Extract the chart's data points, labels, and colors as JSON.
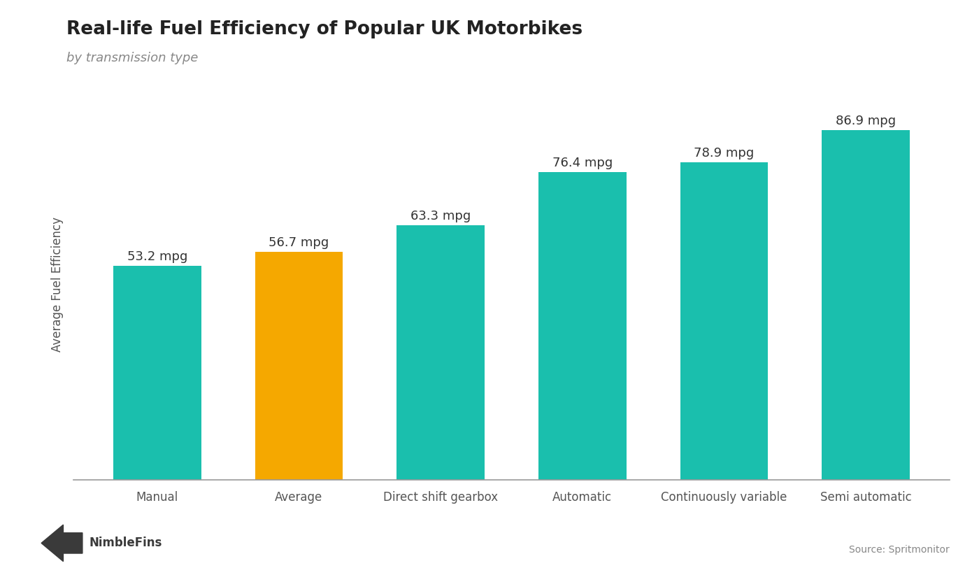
{
  "title": "Real-life Fuel Efficiency of Popular UK Motorbikes",
  "subtitle": "by transmission type",
  "categories": [
    "Manual",
    "Average",
    "Direct shift gearbox",
    "Automatic",
    "Continuously variable",
    "Semi automatic"
  ],
  "values": [
    53.2,
    56.7,
    63.3,
    76.4,
    78.9,
    86.9
  ],
  "labels": [
    "53.2 mpg",
    "56.7 mpg",
    "63.3 mpg",
    "76.4 mpg",
    "78.9 mpg",
    "86.9 mpg"
  ],
  "bar_colors": [
    "#1ABFAD",
    "#F5A800",
    "#1ABFAD",
    "#1ABFAD",
    "#1ABFAD",
    "#1ABFAD"
  ],
  "ylabel": "Average Fuel Efficiency",
  "ylim": [
    0,
    97
  ],
  "background_color": "#ffffff",
  "title_fontsize": 19,
  "subtitle_fontsize": 13,
  "label_fontsize": 13,
  "ylabel_fontsize": 12,
  "xtick_fontsize": 12,
  "source_text": "Source: Spritmonitor",
  "nimblefins_text": "NimbleFins",
  "title_color": "#222222",
  "subtitle_color": "#888888",
  "label_color": "#333333",
  "axis_color": "#999999",
  "tick_color": "#555555"
}
